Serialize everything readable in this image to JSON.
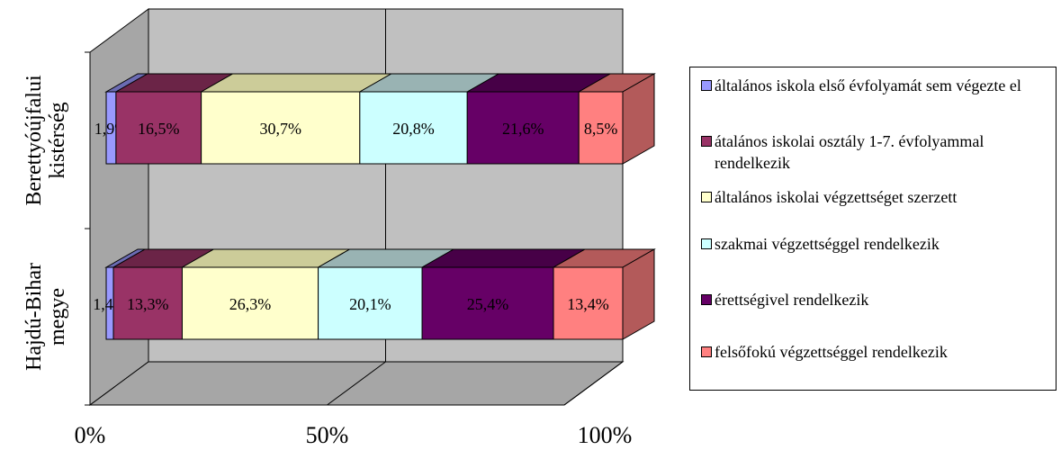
{
  "chart_data": {
    "type": "bar",
    "orientation": "horizontal",
    "stacked": "percent",
    "three_d": true,
    "categories": [
      "Berettyóújfalui kistérség",
      "Hajdú-Bihar megye"
    ],
    "x_ticks": [
      "0%",
      "50%",
      "100%"
    ],
    "xlim": [
      0,
      100
    ],
    "grid": true,
    "legend_position": "right",
    "series": [
      {
        "name": "általános iskola első évfolyamát sem végezte el",
        "color": "#9999ff",
        "side_color": "#6b6bb3",
        "values": [
          1.9,
          1.4
        ],
        "labels": [
          "1,9%",
          "1,4%"
        ]
      },
      {
        "name": "átalános iskolai osztály 1-7. évfolyammal rendelkezik",
        "color": "#993366",
        "side_color": "#6b2447",
        "values": [
          16.5,
          13.3
        ],
        "labels": [
          "16,5%",
          "13,3%"
        ]
      },
      {
        "name": "általános iskolai végzettséget szerzett",
        "color": "#ffffcc",
        "side_color": "#cccc99",
        "values": [
          30.7,
          26.3
        ],
        "labels": [
          "30,7%",
          "26,3%"
        ]
      },
      {
        "name": "szakmai végzettséggel rendelkezik",
        "color": "#ccffff",
        "side_color": "#99b3b3",
        "values": [
          20.8,
          20.1
        ],
        "labels": [
          "20,8%",
          "20,1%"
        ]
      },
      {
        "name": "érettségivel rendelkezik",
        "color": "#660066",
        "side_color": "#470047",
        "values": [
          21.6,
          25.4
        ],
        "labels": [
          "21,6%",
          "25,4%"
        ]
      },
      {
        "name": "felsőfokú végzettséggel rendelkezik",
        "color": "#ff8080",
        "side_color": "#b35a5a",
        "values": [
          8.5,
          13.4
        ],
        "labels": [
          "8,5%",
          "13,4%"
        ]
      }
    ]
  }
}
